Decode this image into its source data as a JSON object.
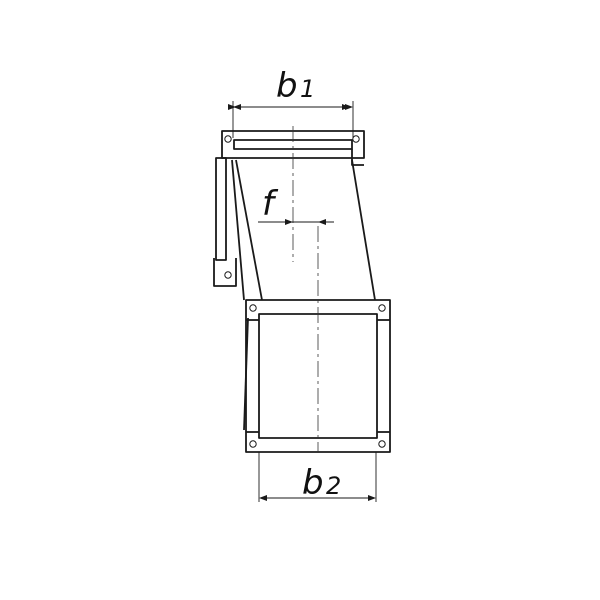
{
  "labels": {
    "b1_main": "b",
    "b1_sub": "1",
    "f": "f",
    "b2_main": "b",
    "b2_sub": "2"
  },
  "colors": {
    "stroke": "#1a1a1a",
    "background": "#ffffff"
  }
}
